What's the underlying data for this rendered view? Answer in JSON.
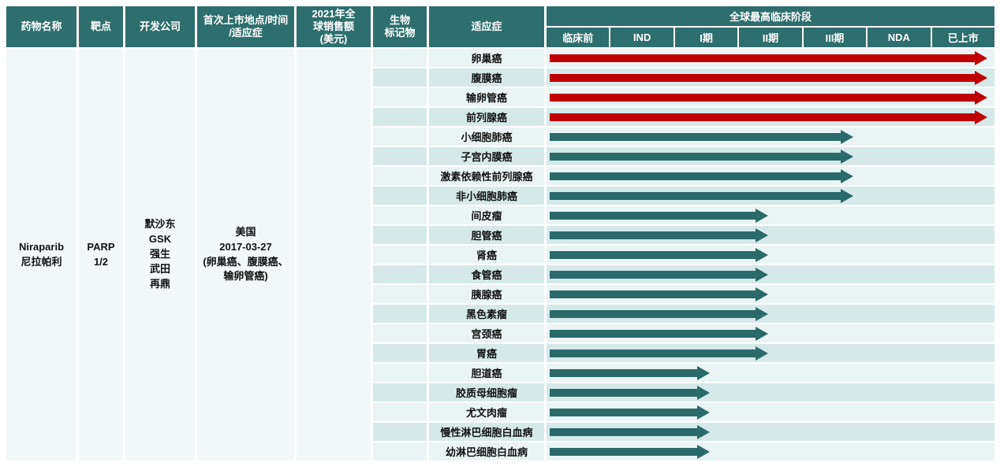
{
  "headers": {
    "drug_name": "药物名称",
    "target": "靶点",
    "company": "开发公司",
    "first_launch": "首次上市地点/时间\n/适应症",
    "sales_2021": "2021年全\n球销售额\n(美元)",
    "biomarker": "生物\n标记物",
    "indication": "适应症"
  },
  "stage_header": {
    "title": "全球最高临床阶段",
    "stages": [
      "临床前",
      "IND",
      "I期",
      "II期",
      "III期",
      "NDA",
      "已上市"
    ]
  },
  "drug": {
    "name_en": "Niraparib",
    "name_cn": "尼拉帕利",
    "target": "PARP\n1/2",
    "companies": [
      "默沙东",
      "GSK",
      "强生",
      "武田",
      "再鼎"
    ],
    "first_launch_lines": [
      "美国",
      "2017-03-27",
      "(卵巢癌、腹膜癌、",
      "输卵管癌)"
    ],
    "sales_2021": "",
    "biomarker": ""
  },
  "indications": [
    {
      "label": "卵巢癌",
      "stage": "已上市"
    },
    {
      "label": "腹膜癌",
      "stage": "已上市"
    },
    {
      "label": "输卵管癌",
      "stage": "已上市"
    },
    {
      "label": "前列腺癌",
      "stage": "已上市"
    },
    {
      "label": "小细胞肺癌",
      "stage": "III期"
    },
    {
      "label": "子宫内膜癌",
      "stage": "III期"
    },
    {
      "label": "激素依赖性前列腺癌",
      "stage": "III期"
    },
    {
      "label": "非小细胞肺癌",
      "stage": "III期"
    },
    {
      "label": "间皮瘤",
      "stage": "II期"
    },
    {
      "label": "胆管癌",
      "stage": "II期"
    },
    {
      "label": "肾癌",
      "stage": "II期"
    },
    {
      "label": "食管癌",
      "stage": "II期"
    },
    {
      "label": "胰腺癌",
      "stage": "II期"
    },
    {
      "label": "黑色素瘤",
      "stage": "II期"
    },
    {
      "label": "宫颈癌",
      "stage": "II期"
    },
    {
      "label": "胃癌",
      "stage": "II期"
    },
    {
      "label": "胆道癌",
      "stage": "I期"
    },
    {
      "label": "胶质母细胞瘤",
      "stage": "I期"
    },
    {
      "label": "尤文肉瘤",
      "stage": "I期"
    },
    {
      "label": "慢性淋巴细胞白血病",
      "stage": "I期"
    },
    {
      "label": "幼淋巴细胞白血病",
      "stage": "I期"
    }
  ],
  "stage_arrow_extent_pct": {
    "已上市": 98.5,
    "III期": 68.5,
    "II期": 49.5,
    "I期": 36.5
  },
  "colors": {
    "header_teal": "#2E6E6E",
    "arrow_teal": "#2A6A6A",
    "arrow_red": "#C00000",
    "stripe_light": "#EAF4F4",
    "stripe_dark": "#D6E9E9",
    "merged_bg": "#F2F8F8",
    "text": "#111111"
  },
  "chart_data": {
    "type": "bar",
    "title": "全球最高临床阶段",
    "xlabel": "临床阶段",
    "ylabel": "适应症",
    "x_axis_stages": [
      "临床前",
      "IND",
      "I期",
      "II期",
      "III期",
      "NDA",
      "已上市"
    ],
    "categories": [
      "卵巢癌",
      "腹膜癌",
      "输卵管癌",
      "前列腺癌",
      "小细胞肺癌",
      "子宫内膜癌",
      "激素依赖性前列腺癌",
      "非小细胞肺癌",
      "间皮瘤",
      "胆管癌",
      "肾癌",
      "食管癌",
      "胰腺癌",
      "黑色素瘤",
      "宫颈癌",
      "胃癌",
      "胆道癌",
      "胶质母细胞瘤",
      "尤文肉瘤",
      "慢性淋巴细胞白血病",
      "幼淋巴细胞白血病"
    ],
    "series": [
      {
        "name": "最高临床阶段",
        "values": [
          "已上市",
          "已上市",
          "已上市",
          "已上市",
          "III期",
          "III期",
          "III期",
          "III期",
          "II期",
          "II期",
          "II期",
          "II期",
          "II期",
          "II期",
          "II期",
          "II期",
          "I期",
          "I期",
          "I期",
          "I期",
          "I期"
        ],
        "values_stage_index": [
          6,
          6,
          6,
          6,
          4,
          4,
          4,
          4,
          3,
          3,
          3,
          3,
          3,
          3,
          3,
          3,
          2,
          2,
          2,
          2,
          2
        ]
      }
    ],
    "bar_colors": {
      "已上市": "#C00000",
      "其他": "#2A6A6A"
    },
    "legend": "none",
    "grid": false
  }
}
